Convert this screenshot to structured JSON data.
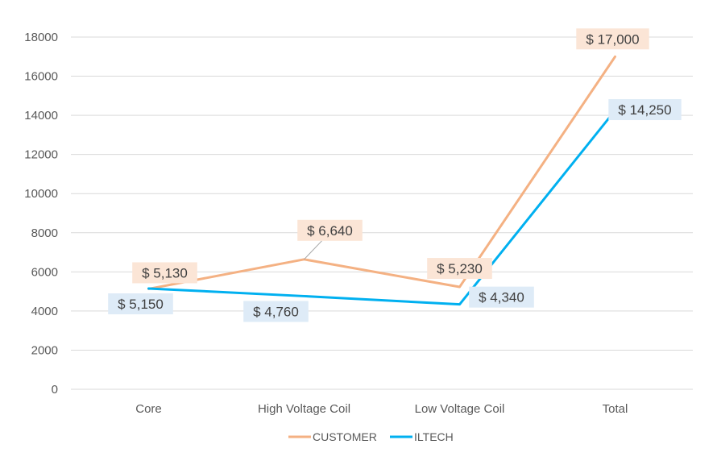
{
  "chart_data": {
    "type": "line",
    "categories": [
      "Core",
      "High Voltage Coil",
      "Low Voltage Coil",
      "Total"
    ],
    "ylim": [
      0,
      18000
    ],
    "y_ticks": [
      "0",
      "2000",
      "4000",
      "6000",
      "8000",
      "10000",
      "12000",
      "14000",
      "16000",
      "18000"
    ],
    "grid": true,
    "legend_position": "bottom",
    "series": [
      {
        "name": "CUSTOMER",
        "color": "#F4B183",
        "label_bg": "#FBE5D6",
        "values": [
          5130,
          6640,
          5230,
          17000
        ],
        "labels": [
          "$ 5,130",
          "$ 6,640",
          "$ 5,230",
          "$ 17,000"
        ]
      },
      {
        "name": "ILTECH",
        "color": "#00B0F0",
        "label_bg": "#DEEBF7",
        "values": [
          5150,
          4760,
          4340,
          14250
        ],
        "labels": [
          "$ 5,150",
          "$ 4,760",
          "$ 4,340",
          "$ 14,250"
        ]
      }
    ]
  }
}
